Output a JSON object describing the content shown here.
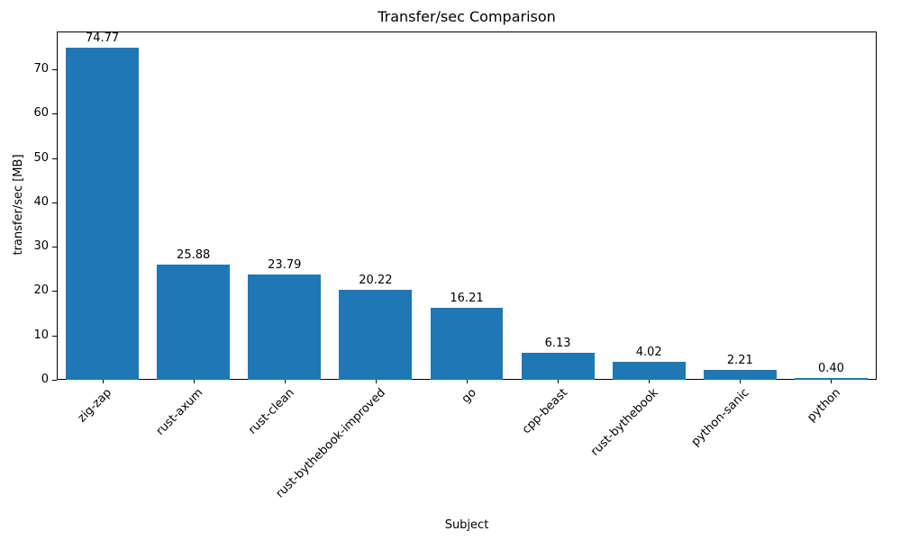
{
  "chart_data": {
    "type": "bar",
    "title": "Transfer/sec Comparison",
    "xlabel": "Subject",
    "ylabel": "transfer/sec [MB]",
    "categories": [
      "zig-zap",
      "rust-axum",
      "rust-clean",
      "rust-bythebook-improved",
      "go",
      "cpp-beast",
      "rust-bythebook",
      "python-sanic",
      "python"
    ],
    "values": [
      74.77,
      25.88,
      23.79,
      20.22,
      16.21,
      6.13,
      4.02,
      2.21,
      0.4
    ],
    "bar_labels": [
      "74.77",
      "25.88",
      "23.79",
      "20.22",
      "16.21",
      "6.13",
      "4.02",
      "2.21",
      "0.40"
    ],
    "bar_color": "#1f77b4",
    "ylim": [
      0,
      78.5
    ],
    "yticks": [
      0,
      10,
      20,
      30,
      40,
      50,
      60,
      70
    ],
    "grid": false,
    "legend_position": "none"
  }
}
